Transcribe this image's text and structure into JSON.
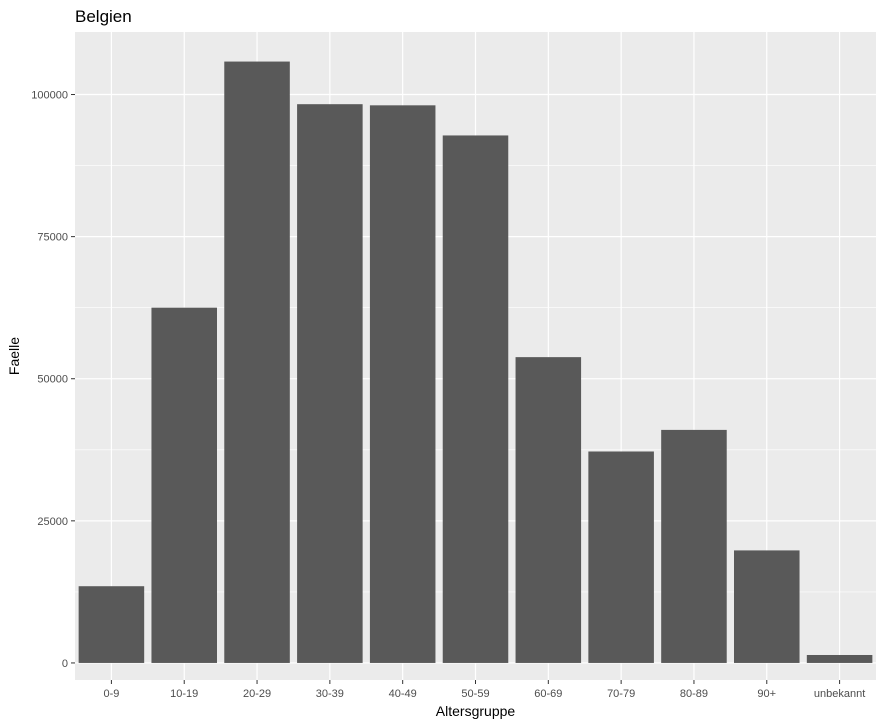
{
  "chart_data": {
    "type": "bar",
    "title": "Belgien",
    "xlabel": "Altersgruppe",
    "ylabel": "Faelle",
    "categories": [
      "0-9",
      "10-19",
      "20-29",
      "30-39",
      "40-49",
      "50-59",
      "60-69",
      "70-79",
      "80-89",
      "90+",
      "unbekannt"
    ],
    "values": [
      13500,
      62500,
      105800,
      98300,
      98100,
      92800,
      53800,
      37200,
      41000,
      19800,
      1400
    ],
    "ylim": [
      -3000,
      111000
    ],
    "yticks": [
      0,
      25000,
      50000,
      75000,
      100000
    ],
    "ytick_labels": [
      "0",
      "25000",
      "50000",
      "75000",
      "100000"
    ],
    "grid": true,
    "colors": {
      "bar": "#595959",
      "panel": "#ebebeb",
      "grid_major": "#ffffff",
      "tick_text": "#4d4d4d"
    }
  }
}
